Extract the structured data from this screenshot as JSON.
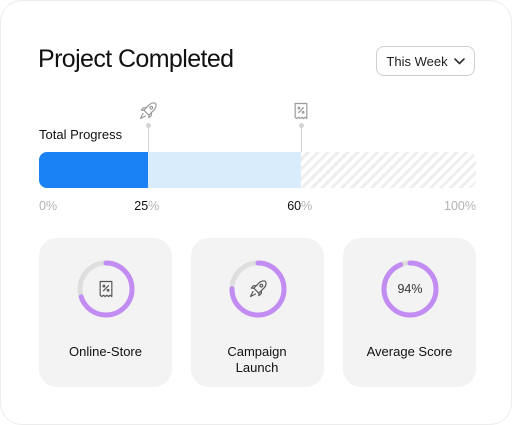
{
  "header": {
    "title": "Project Completed",
    "period_label": "This Week"
  },
  "progress": {
    "label": "Total Progress",
    "completed_percent": 25,
    "in_progress_percent": 60,
    "fill_color": "#1a82f5",
    "secondary_color": "#d8ecfb",
    "markers": [
      {
        "icon": "rocket-icon",
        "at_percent": 25
      },
      {
        "icon": "receipt-percent-icon",
        "at_percent": 60
      }
    ],
    "ticks": [
      {
        "value": "0",
        "unit": "%"
      },
      {
        "value": "25",
        "unit": "%"
      },
      {
        "value": "60",
        "unit": "%"
      },
      {
        "value": "100",
        "unit": "%"
      }
    ]
  },
  "stats": [
    {
      "label": "Online-Store",
      "icon": "receipt-percent-icon",
      "percent": 70,
      "show_value": false
    },
    {
      "label": "Campaign Launch",
      "icon": "rocket-icon",
      "percent": 75,
      "show_value": false
    },
    {
      "label": "Average Score",
      "icon": "",
      "percent": 94,
      "value_text": "94%",
      "show_value": true
    }
  ],
  "ring_color": "#c38cf2",
  "ring_track_color": "#dedede"
}
